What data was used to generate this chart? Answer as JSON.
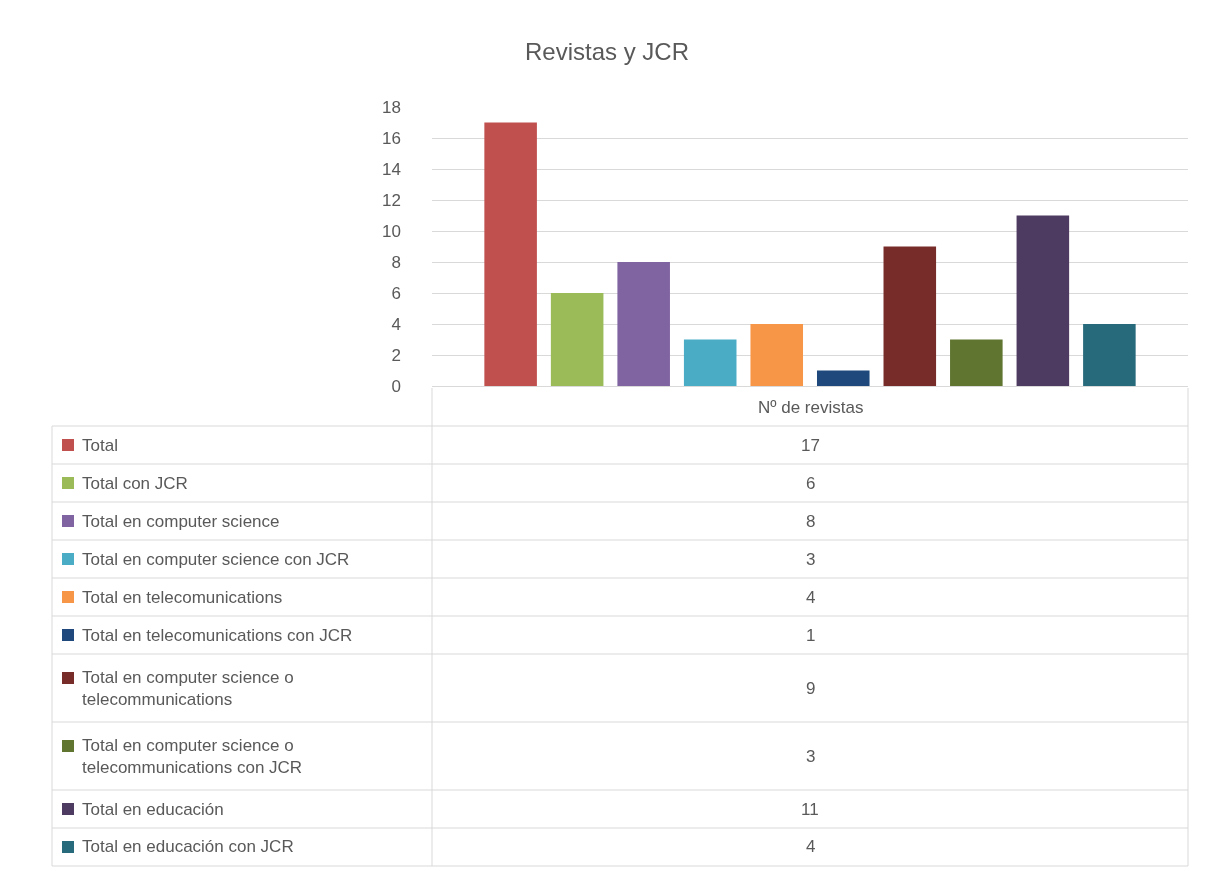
{
  "chart_data": {
    "type": "bar",
    "title": "Revistas y JCR",
    "categories": [
      "Nº de revistas"
    ],
    "series": [
      {
        "name": "Total",
        "color": "#c0504d",
        "values": [
          17
        ]
      },
      {
        "name": "Total con JCR",
        "color": "#9bbb59",
        "values": [
          6
        ]
      },
      {
        "name": "Total en computer science",
        "color": "#8064a2",
        "values": [
          8
        ]
      },
      {
        "name": "Total en computer science con JCR",
        "color": "#4bacc6",
        "values": [
          3
        ]
      },
      {
        "name": "Total en telecomunications",
        "color": "#f79646",
        "values": [
          4
        ]
      },
      {
        "name": "Total en telecomunications con JCR",
        "color": "#1f497d",
        "values": [
          1
        ]
      },
      {
        "name": "Total en computer science o telecommunications",
        "color": "#772c2a",
        "values": [
          9
        ]
      },
      {
        "name": "Total en computer science o telecommunications con JCR",
        "color": "#5f7530",
        "values": [
          3
        ]
      },
      {
        "name": "Total en educación",
        "color": "#4d3b62",
        "values": [
          11
        ]
      },
      {
        "name": "Total en educación con JCR",
        "color": "#276a7c",
        "values": [
          4
        ]
      }
    ],
    "ylim": [
      0,
      18
    ],
    "yticks": [
      0,
      2,
      4,
      6,
      8,
      10,
      12,
      14,
      16,
      18
    ],
    "grid": "y",
    "legend": "bottom",
    "annotations": [
      "17",
      "6",
      "8",
      "3",
      "4",
      "1",
      "9",
      "3",
      "11",
      "4"
    ]
  }
}
